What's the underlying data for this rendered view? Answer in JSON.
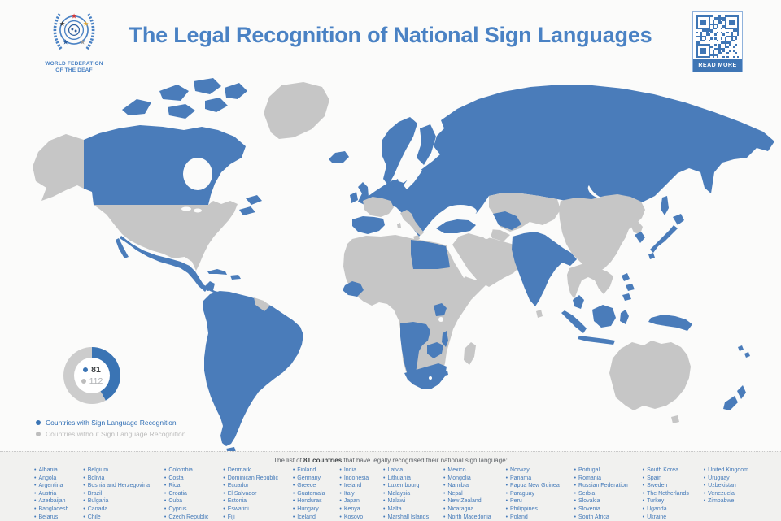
{
  "header": {
    "org_name_line1": "WORLD FEDERATION",
    "org_name_line2": "OF THE DEAF",
    "title": "The Legal Recognition of National Sign Languages",
    "qr_button_label": "READ MORE"
  },
  "chart_data": {
    "type": "pie",
    "title": "Countries with vs without national sign language recognition",
    "series": [
      {
        "label": "Countries with Sign Language Recognition",
        "value": 81,
        "color": "#3a74b4"
      },
      {
        "label": "Countries without Sign Language Recognition",
        "value": 112,
        "color": "#cccccc"
      }
    ],
    "legend_position": "bottom-left",
    "donut": true
  },
  "map": {
    "recognized_color": "#4a7cba",
    "not_recognized_color": "#c6c6c6"
  },
  "list_section": {
    "intro_prefix": "The list of ",
    "intro_bold": "81 countries",
    "intro_suffix": " that have legally recognised their national sign language:",
    "columns": [
      [
        "Albania",
        "Angola",
        "Argentina",
        "Austria",
        "Azerbaijan",
        "Bangladesh",
        "Belarus"
      ],
      [
        "Belgium",
        "Bolivia",
        "Bosnia and Herzegovina",
        "Brazil",
        "Bulgaria",
        "Canada",
        "Chile"
      ],
      [
        "Colombia",
        "Costa",
        "Rica",
        "Croatia",
        "Cuba",
        "Cyprus",
        "Czech Republic"
      ],
      [
        "Denmark",
        "Dominican Republic",
        "Ecuador",
        "El Salvador",
        "Estonia",
        "Eswatini",
        "Fiji"
      ],
      [
        "Finland",
        "Germany",
        "Greece",
        "Guatemala",
        "Honduras",
        "Hungary",
        "Iceland"
      ],
      [
        "India",
        "Indonesia",
        "Ireland",
        "Italy",
        "Japan",
        "Kenya",
        "Kosovo"
      ],
      [
        "Latvia",
        "Lithuania",
        "Luxembourg",
        "Malaysia",
        "Malawi",
        "Malta",
        "Marshall Islands"
      ],
      [
        "Mexico",
        "Mongolia",
        "Namibia",
        "Nepal",
        "New Zealand",
        "Nicaragua",
        "North Macedonia"
      ],
      [
        "Norway",
        "Panama",
        "Papua New Guinea",
        "Paraguay",
        "Peru",
        "Philippines",
        "Poland"
      ],
      [
        "Portugal",
        "Romania",
        "Russian Federation",
        "Serbia",
        "Slovakia",
        "Slovenia",
        "South Africa"
      ],
      [
        "South Korea",
        "Spain",
        "Sweden",
        "The Netherlands",
        "Turkey",
        "Uganda",
        "Ukraine"
      ],
      [
        "United Kingdom",
        "Uruguay",
        "Uzbekistan",
        "Venezuela",
        "Zimbabwe"
      ]
    ]
  }
}
